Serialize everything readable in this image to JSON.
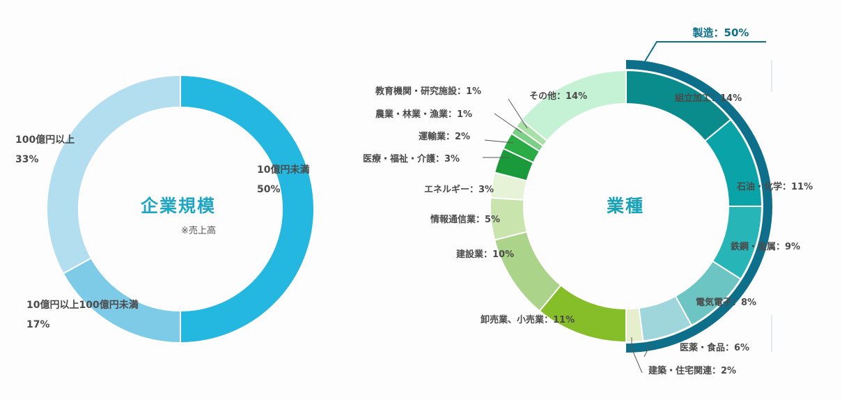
{
  "charts": {
    "size": {
      "title": "企業規模",
      "note": "※売上高",
      "labels": [
        {
          "line1": "10億円未満",
          "line2": "50%"
        },
        {
          "line1": "10億円以上100億円未満",
          "line2": "17%"
        },
        {
          "line1": "100億円以上",
          "line2": "33%"
        }
      ]
    },
    "industry": {
      "title": "業種",
      "manufacturing_label": "製造：50%",
      "labels": [
        "組立加工：14%",
        "石油・化学：11%",
        "鉄鋼・金属：9%",
        "電気電子：8%",
        "医薬・食品：6%",
        "建築・住宅関連：2%",
        "卸売業、小売業：11%",
        "建設業：10%",
        "情報通信業：5%",
        "エネルギー：3%",
        "医療・福祉・介護：3%",
        "運輸業：2%",
        "農業・林業・漁業：1%",
        "教育機関・研究施設：1%",
        "その他：14%"
      ]
    }
  },
  "chart_data": [
    {
      "type": "pie",
      "title": "企業規模",
      "categories": [
        "10億円未満",
        "10億円以上100億円未満",
        "100億円以上"
      ],
      "values": [
        50,
        17,
        33
      ],
      "colors": [
        "#24b8e0",
        "#7ecbe8",
        "#b2def0"
      ]
    },
    {
      "type": "pie",
      "title": "業種",
      "categories": [
        "組立加工",
        "石油・化学",
        "鉄鋼・金属",
        "電気電子",
        "医薬・食品",
        "建築・住宅関連",
        "卸売業、小売業",
        "建設業",
        "情報通信業",
        "エネルギー",
        "医療・福祉・介護",
        "運輸業",
        "農業・林業・漁業",
        "教育機関・研究施設",
        "その他"
      ],
      "values": [
        14,
        11,
        9,
        8,
        6,
        2,
        11,
        10,
        5,
        3,
        3,
        2,
        1,
        1,
        14
      ],
      "colors": [
        "#0b8c8c",
        "#09a3a8",
        "#28b5b8",
        "#6cc5c3",
        "#9fd6db",
        "#e6efcc",
        "#86be2a",
        "#acd38a",
        "#cae4ad",
        "#e7f3d7",
        "#1b9a3b",
        "#2aab43",
        "#7ccf84",
        "#a8e0a8",
        "#c5f2d4"
      ],
      "groups": [
        {
          "name": "製造",
          "value": 50
        }
      ]
    }
  ]
}
